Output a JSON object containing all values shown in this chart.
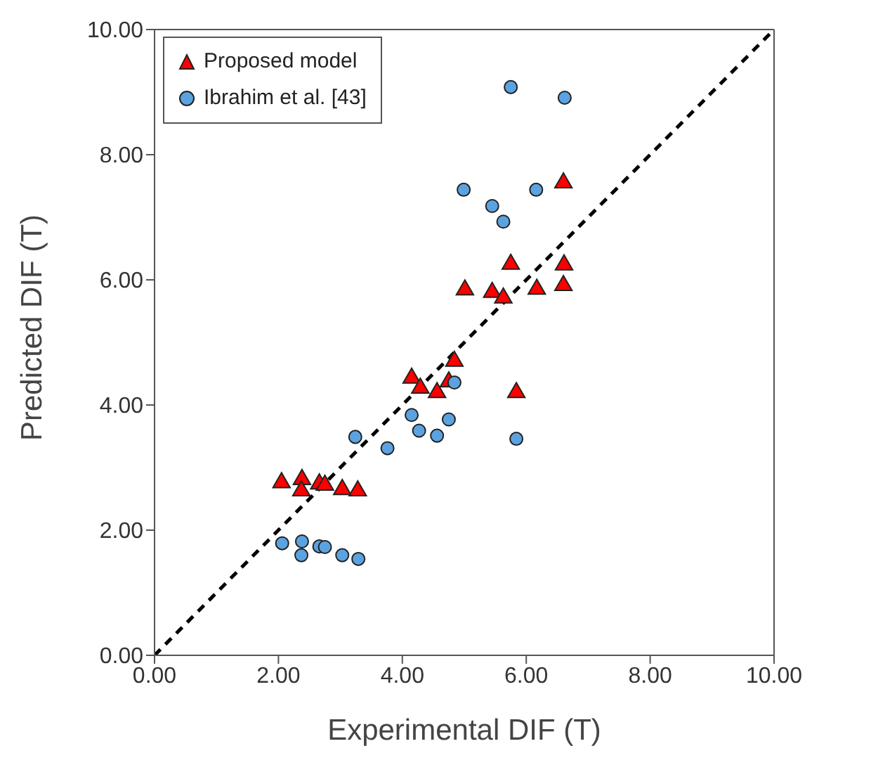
{
  "chart_data": {
    "type": "scatter",
    "xlabel": "Experimental DIF (T)",
    "ylabel": "Predicted DIF (T)",
    "xlim": [
      0,
      10
    ],
    "ylim": [
      0,
      10
    ],
    "xticks": [
      {
        "value": 0,
        "label": "0.00"
      },
      {
        "value": 2,
        "label": "2.00"
      },
      {
        "value": 4,
        "label": "4.00"
      },
      {
        "value": 6,
        "label": "6.00"
      },
      {
        "value": 8,
        "label": "8.00"
      },
      {
        "value": 10,
        "label": "10.00"
      }
    ],
    "yticks": [
      {
        "value": 0,
        "label": "0.00"
      },
      {
        "value": 2,
        "label": "2.00"
      },
      {
        "value": 4,
        "label": "4.00"
      },
      {
        "value": 6,
        "label": "6.00"
      },
      {
        "value": 8,
        "label": "8.00"
      },
      {
        "value": 10,
        "label": "10.00"
      }
    ],
    "grid": false,
    "legend": "top left",
    "series": [
      {
        "name": "Proposed model",
        "marker": "triangle",
        "color": "#ff0000",
        "x": [
          2.05,
          2.38,
          2.37,
          2.66,
          2.75,
          3.03,
          3.28,
          4.15,
          4.29,
          4.56,
          4.75,
          4.84,
          5.01,
          5.45,
          5.63,
          5.75,
          6.17,
          6.61,
          6.6,
          6.6,
          5.84
        ],
        "values": [
          2.76,
          2.81,
          2.63,
          2.74,
          2.72,
          2.65,
          2.63,
          4.43,
          4.27,
          4.2,
          4.37,
          4.7,
          5.84,
          5.8,
          5.71,
          6.25,
          5.85,
          6.24,
          5.91,
          7.55,
          4.2
        ]
      },
      {
        "name": "Ibrahim et al. [43]",
        "marker": "circle",
        "color": "#5ba3e0",
        "x": [
          2.06,
          2.38,
          2.37,
          2.66,
          2.75,
          3.03,
          3.29,
          3.24,
          3.76,
          4.15,
          4.27,
          4.56,
          4.75,
          4.84,
          5.84,
          4.99,
          5.45,
          5.63,
          6.16,
          5.75,
          6.62
        ],
        "values": [
          1.79,
          1.82,
          1.6,
          1.74,
          1.73,
          1.6,
          1.54,
          3.49,
          3.31,
          3.84,
          3.59,
          3.51,
          3.77,
          4.36,
          3.46,
          7.44,
          7.18,
          6.93,
          7.44,
          9.08,
          8.91
        ]
      },
      {
        "type": "line",
        "color": "#000000",
        "line_style": "dashed",
        "marker": "none",
        "x": [
          0,
          10
        ],
        "values": [
          0,
          10
        ]
      }
    ]
  }
}
